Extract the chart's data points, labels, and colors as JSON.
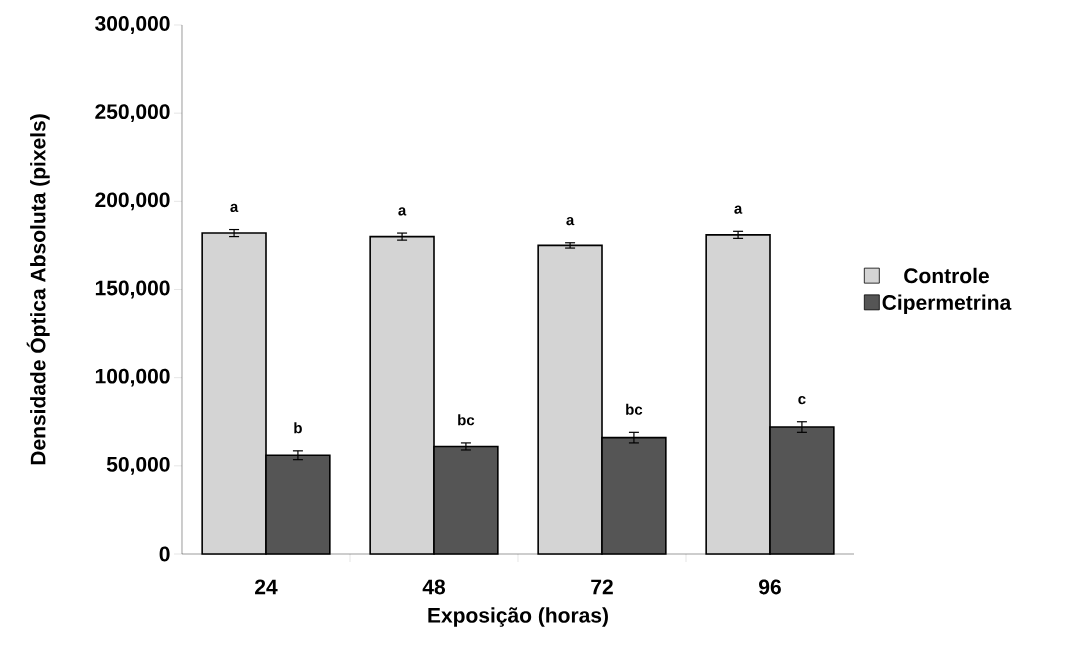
{
  "chart_data": {
    "type": "bar",
    "xlabel": "Exposição (horas)",
    "ylabel": "Densidade Óptica Absoluta (pixels)",
    "categories": [
      "24",
      "48",
      "72",
      "96"
    ],
    "series": [
      {
        "name": "Controle",
        "color": "#d4d4d4",
        "values": [
          182000,
          180000,
          175000,
          181000
        ],
        "errors": [
          2000,
          2000,
          1500,
          2000
        ]
      },
      {
        "name": "Cipermetrina",
        "color": "#555555",
        "values": [
          56000,
          61000,
          66000,
          72000
        ],
        "errors": [
          2500,
          2000,
          3000,
          3000
        ]
      }
    ],
    "ylim": [
      0,
      300000
    ],
    "yticks": [
      0,
      {
        "value": 50000,
        "label": "50,000"
      },
      {
        "value": 100000,
        "label": "100,000"
      },
      {
        "value": 150000,
        "label": "150,000"
      },
      {
        "value": 200000,
        "label": "200,000"
      },
      {
        "value": 250000,
        "label": "250,000"
      },
      {
        "value": 300000,
        "label": "300,000"
      }
    ],
    "annotations": [
      "a",
      "b",
      "a",
      "bc",
      "a",
      "bc",
      "a",
      "c"
    ],
    "legend": "right",
    "grid": false
  }
}
